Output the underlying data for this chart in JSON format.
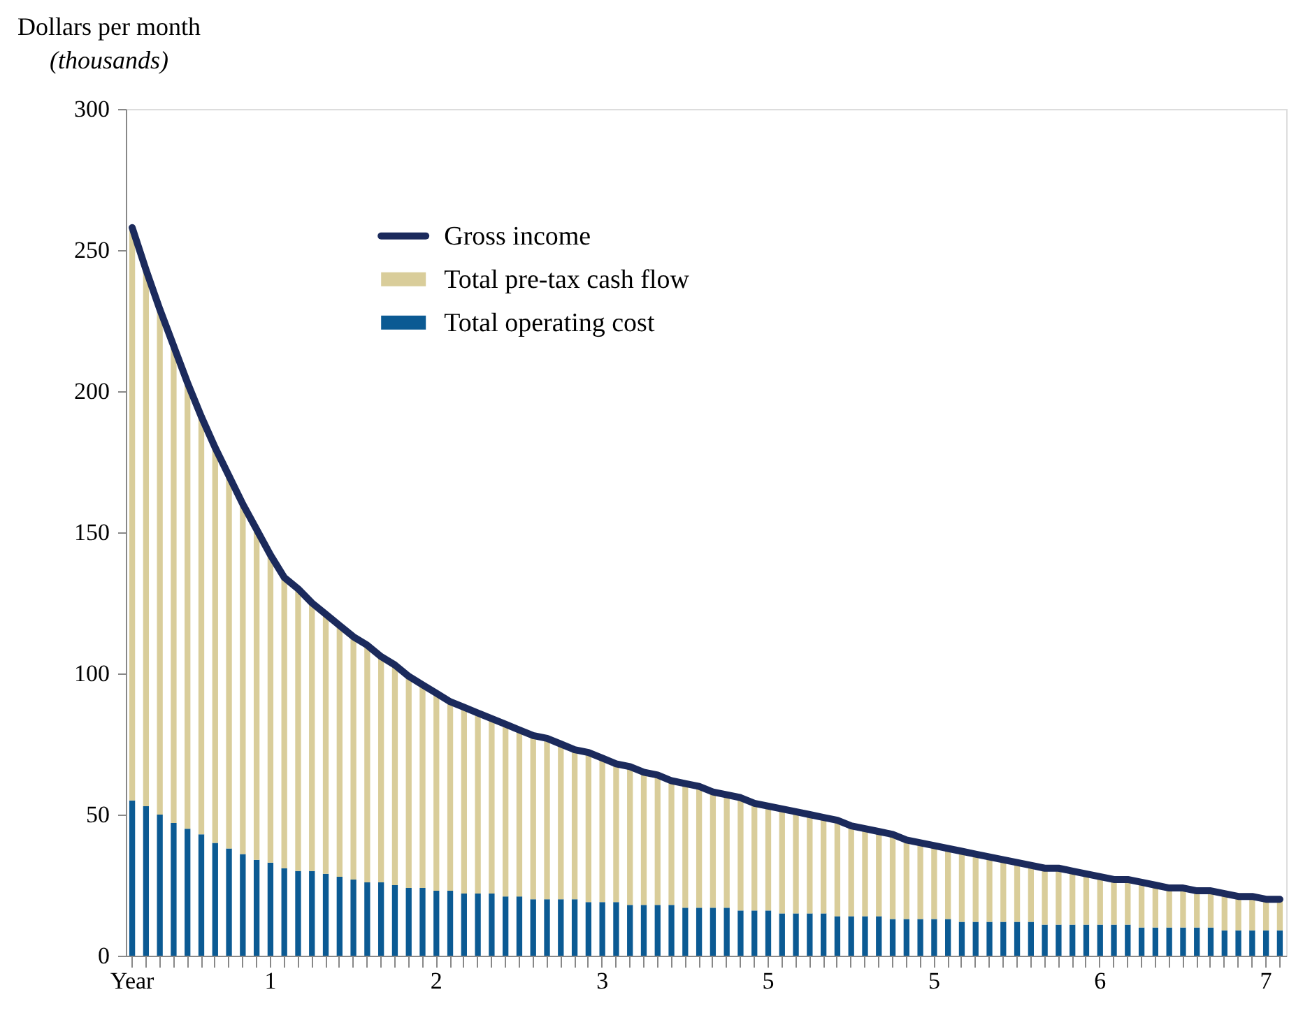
{
  "chart_data": {
    "type": "bar",
    "stacked": true,
    "ylabel": "Dollars per month\n(thousands)",
    "categories": [
      "Year",
      null,
      null,
      null,
      null,
      null,
      null,
      null,
      null,
      null,
      "1",
      null,
      null,
      null,
      null,
      null,
      null,
      null,
      null,
      null,
      null,
      null,
      "2",
      null,
      null,
      null,
      null,
      null,
      null,
      null,
      null,
      null,
      null,
      null,
      "3",
      null,
      null,
      null,
      null,
      null,
      null,
      null,
      null,
      null,
      null,
      null,
      "5",
      null,
      null,
      null,
      null,
      null,
      null,
      null,
      null,
      null,
      null,
      null,
      "5",
      null,
      null,
      null,
      null,
      null,
      null,
      null,
      null,
      null,
      null,
      null,
      "6",
      null,
      null,
      null,
      null,
      null,
      null,
      null,
      null,
      null,
      null,
      null,
      "7",
      null
    ],
    "series": [
      {
        "name": "Total operating cost",
        "color": "#0b5a93",
        "values": [
          55,
          53,
          50,
          47,
          45,
          43,
          40,
          38,
          36,
          34,
          33,
          31,
          30,
          30,
          29,
          28,
          27,
          26,
          26,
          25,
          24,
          24,
          23,
          23,
          22,
          22,
          22,
          21,
          21,
          20,
          20,
          20,
          20,
          19,
          19,
          19,
          18,
          18,
          18,
          18,
          17,
          17,
          17,
          17,
          16,
          16,
          16,
          15,
          15,
          15,
          15,
          14,
          14,
          14,
          14,
          13,
          13,
          13,
          13,
          13,
          12,
          12,
          12,
          12,
          12,
          12,
          11,
          11,
          11,
          11,
          11,
          11,
          11,
          10,
          10,
          10,
          10,
          10,
          10,
          9,
          9,
          9,
          9,
          9
        ]
      },
      {
        "name": "Total pre-tax cash flow",
        "color": "#d9cd9a",
        "values": [
          203,
          190,
          179,
          169,
          158,
          148,
          140,
          132,
          124,
          117,
          109,
          103,
          100,
          95,
          92,
          89,
          86,
          84,
          80,
          78,
          75,
          72,
          70,
          67,
          66,
          64,
          62,
          61,
          59,
          58,
          57,
          55,
          53,
          53,
          51,
          49,
          49,
          47,
          46,
          44,
          44,
          43,
          41,
          40,
          40,
          38,
          37,
          37,
          36,
          35,
          34,
          34,
          32,
          31,
          30,
          30,
          28,
          27,
          26,
          25,
          25,
          24,
          23,
          22,
          21,
          20,
          19,
          20,
          19,
          18,
          17,
          16,
          16,
          15,
          15,
          14,
          14,
          13,
          13,
          12,
          12,
          12,
          11,
          11
        ]
      },
      {
        "name": "Gross income",
        "type": "line",
        "color": "#1b2a5c",
        "values": [
          258,
          243,
          229,
          216,
          203,
          191,
          180,
          170,
          160,
          151,
          142,
          134,
          130,
          125,
          121,
          117,
          113,
          110,
          106,
          103,
          99,
          96,
          93,
          90,
          88,
          86,
          84,
          82,
          80,
          78,
          77,
          75,
          73,
          72,
          70,
          68,
          67,
          65,
          64,
          62,
          61,
          60,
          58,
          57,
          56,
          54,
          53,
          52,
          51,
          50,
          49,
          48,
          46,
          45,
          44,
          43,
          41,
          40,
          39,
          38,
          37,
          36,
          35,
          34,
          33,
          32,
          31,
          31,
          30,
          29,
          28,
          27,
          27,
          26,
          25,
          24,
          24,
          23,
          23,
          22,
          21,
          21,
          20,
          20
        ]
      }
    ],
    "ylim": [
      0,
      300
    ],
    "yticks": [
      0,
      50,
      100,
      150,
      200,
      250,
      300
    ],
    "legend": "top",
    "grid": false
  }
}
